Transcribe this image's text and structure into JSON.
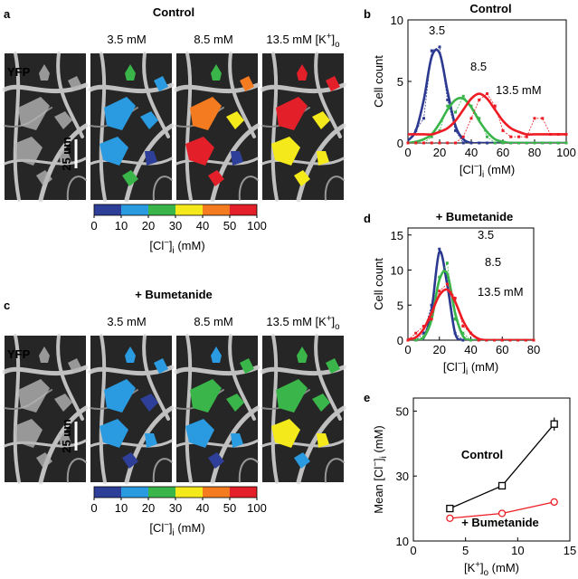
{
  "panel_letters": [
    "a",
    "b",
    "c",
    "d",
    "e"
  ],
  "panel_a": {
    "title": "Control",
    "image_titles": [
      [
        "3.5 mM"
      ],
      [
        "8.5 mM"
      ],
      [
        "13.5 mM [K",
        "+",
        "]",
        "o"
      ]
    ],
    "stain": "YFP",
    "scale_bar": "25 um",
    "colorbar": {
      "ticks": [
        0,
        10,
        20,
        30,
        40,
        50,
        100
      ],
      "colors": [
        "#2e3f99",
        "#2a9be0",
        "#3ab54a",
        "#f4ea1b",
        "#f47b20",
        "#e3202a"
      ],
      "label": [
        "[Cl",
        "−",
        "]",
        "i",
        " (mM)"
      ]
    }
  },
  "panel_c": {
    "title": "+ Bumetanide",
    "image_titles": [
      [
        "3.5 mM"
      ],
      [
        "8.5 mM"
      ],
      [
        "13.5 mM [K",
        "+",
        "]",
        "o"
      ]
    ],
    "stain": "YFP",
    "scale_bar": "25 um",
    "colorbar": {
      "ticks": [
        0,
        10,
        20,
        30,
        40,
        50,
        100
      ],
      "colors": [
        "#2e3f99",
        "#2a9be0",
        "#3ab54a",
        "#f4ea1b",
        "#f47b20",
        "#e3202a"
      ],
      "label": [
        "[Cl",
        "−",
        "]",
        "i",
        " (mM)"
      ]
    }
  },
  "chart_data": [
    {
      "type": "line",
      "title": "Control",
      "xlabel": [
        "[Cl",
        "−",
        "]",
        "i",
        "  (mM)"
      ],
      "ylabel": [
        "Cell count"
      ],
      "x": [
        0,
        5,
        10,
        15,
        20,
        25,
        30,
        35,
        40,
        45,
        50,
        55,
        60,
        65,
        70,
        75,
        80,
        85,
        90,
        95,
        100
      ],
      "xlim": [
        0,
        100
      ],
      "ylim": [
        0,
        10
      ],
      "xticks": [
        0,
        20,
        40,
        60,
        80,
        100
      ],
      "yticks": [
        0,
        5,
        10
      ],
      "series": [
        {
          "name": "3.5",
          "color": "#2b3990",
          "values": [
            0,
            1,
            2,
            7.5,
            7.8,
            3.5,
            1,
            0,
            0,
            0,
            0,
            0,
            0,
            0,
            0,
            0,
            0,
            0,
            0,
            0,
            0
          ],
          "fit": [
            0.2,
            1.0,
            3.5,
            7.0,
            7.3,
            4.2,
            1.4,
            0.3,
            0,
            0,
            0,
            0,
            0,
            0,
            0,
            0,
            0,
            0,
            0,
            0,
            0
          ]
        },
        {
          "name": "8.5",
          "color": "#3ab54a",
          "values": [
            0,
            0,
            0,
            0.5,
            1,
            3,
            2.5,
            3.8,
            3,
            2,
            0.5,
            0,
            0,
            0,
            0,
            0,
            0,
            0,
            0,
            0,
            0
          ],
          "fit": [
            0,
            0.1,
            0.3,
            0.7,
            1.6,
            2.7,
            3.5,
            3.6,
            2.9,
            1.8,
            0.9,
            0.3,
            0.1,
            0,
            0,
            0,
            0,
            0,
            0,
            0,
            0
          ]
        },
        {
          "name": "13.5 mM",
          "color": "#ed1c24",
          "values": [
            0,
            0,
            0,
            0,
            0,
            0,
            0,
            0.5,
            2,
            3.5,
            4,
            3,
            1,
            0.5,
            0.5,
            0.5,
            2,
            2,
            0.7,
            0.7,
            0.7
          ],
          "fit": [
            0.7,
            0.7,
            0.7,
            0.7,
            0.9,
            1.2,
            1.8,
            2.7,
            3.6,
            4.0,
            3.6,
            2.7,
            1.8,
            1.2,
            0.9,
            0.7,
            0.7,
            0.7,
            0.7,
            0.7,
            0.7
          ]
        }
      ]
    },
    {
      "type": "line",
      "title": "+ Bumetanide",
      "xlabel": [
        "[Cl",
        "−",
        "]",
        "i",
        "  (mM)"
      ],
      "ylabel": [
        "Cell count"
      ],
      "x": [
        0,
        5,
        10,
        15,
        20,
        25,
        30,
        35,
        40,
        45,
        50,
        55,
        60,
        65,
        70,
        75,
        80
      ],
      "xlim": [
        0,
        80
      ],
      "ylim": [
        0,
        16
      ],
      "xticks": [
        0,
        20,
        40,
        60,
        80
      ],
      "yticks": [
        0,
        5,
        10,
        15
      ],
      "series": [
        {
          "name": "3.5",
          "color": "#2b3990",
          "values": [
            0,
            0,
            1,
            5,
            13,
            9,
            1,
            0,
            0,
            0,
            0,
            0,
            0,
            0,
            0,
            0,
            0
          ],
          "fit": [
            0,
            0,
            0.3,
            4.2,
            12.6,
            7.9,
            1.0,
            0,
            0,
            0,
            0,
            0,
            0,
            0,
            0,
            0,
            0
          ]
        },
        {
          "name": "8.5",
          "color": "#3ab54a",
          "values": [
            0,
            0,
            0.5,
            3,
            9,
            11,
            3,
            1,
            0,
            0,
            0,
            0,
            0,
            0,
            0,
            0,
            0
          ],
          "fit": [
            0,
            0,
            0.4,
            2.9,
            8.6,
            9.5,
            3.9,
            0.6,
            0,
            0,
            0,
            0,
            0,
            0,
            0,
            0,
            0
          ]
        },
        {
          "name": "13.5 mM",
          "color": "#ed1c24",
          "values": [
            0,
            1,
            2,
            3,
            7,
            8,
            6,
            2,
            1,
            0,
            0,
            0,
            0,
            0,
            0,
            0,
            0
          ],
          "fit": [
            0.1,
            0.4,
            1.6,
            3.9,
            6.4,
            7.2,
            5.5,
            2.8,
            1.0,
            0.2,
            0,
            0,
            0,
            0,
            0,
            0,
            0
          ]
        }
      ]
    },
    {
      "type": "line",
      "xlabel": [
        "[K",
        "+",
        "]",
        "o",
        "  (mM)"
      ],
      "ylabel": [
        "Mean [Cl",
        "−",
        "]",
        "i",
        " (mM)"
      ],
      "x": [
        3.5,
        8.5,
        13.5
      ],
      "xlim": [
        0,
        15
      ],
      "ylim": [
        10,
        54
      ],
      "xticks": [
        0,
        5,
        10,
        15
      ],
      "yticks": [
        10,
        30,
        50
      ],
      "series": [
        {
          "name": "Control",
          "color": "#000000",
          "values": [
            20,
            27,
            46
          ],
          "errors": [
            0.8,
            1,
            2
          ]
        },
        {
          "name": "+ Bumetanide",
          "color": "#ed1c24",
          "values": [
            17,
            18.5,
            22
          ]
        }
      ]
    }
  ]
}
